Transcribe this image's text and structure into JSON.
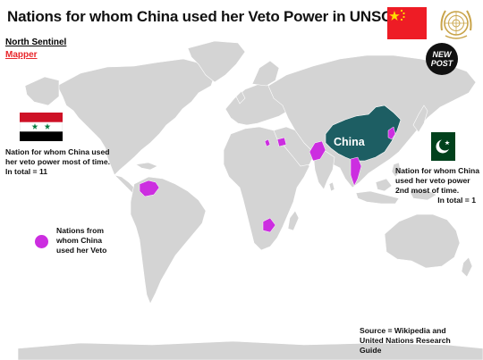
{
  "title": "Nations for whom China used her Veto Power in UNSC",
  "credits": {
    "line1": "North Sentinel",
    "line2": "Mapper"
  },
  "badge": "NEW POST",
  "china_label": "China",
  "syria_note": "Nation for whom China used her veto power most of time. In total = 11",
  "pakistan_note": {
    "text": "Nation for whom China used her veto power 2nd most of time.",
    "total": "In total = 1"
  },
  "legend_label": "Nations from whom China used her Veto",
  "source": "Source = Wikipedia and United Nations Research Guide",
  "colors": {
    "land": "#d4d4d4",
    "china": "#1d5e63",
    "veto": "#cc2ee0",
    "flag_red": "#ee1c25",
    "pakistan_green": "#01411c",
    "un_gold": "#c9a44a"
  },
  "flags": {
    "china": "flag-of-china",
    "un": "un-emblem",
    "syria": "flag-of-syria",
    "pakistan": "flag-of-pakistan"
  }
}
